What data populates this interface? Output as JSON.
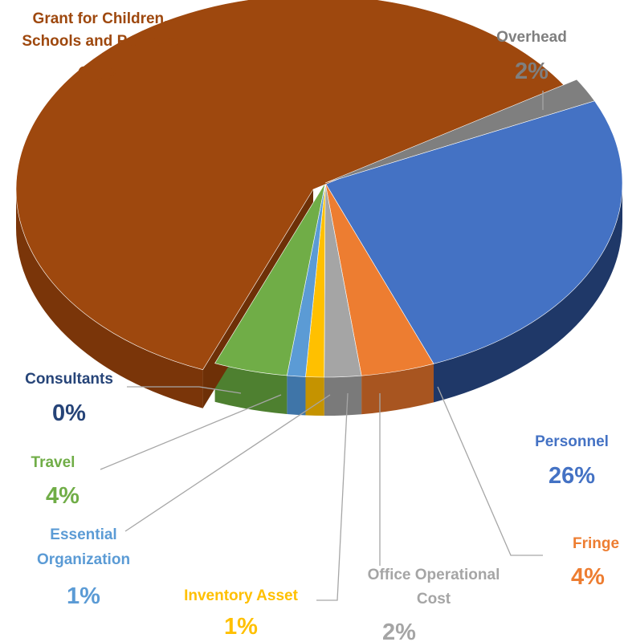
{
  "chart_data": {
    "type": "pie",
    "style": "3d-exploded",
    "title": "",
    "unit": "%",
    "slices": [
      {
        "key": "grant",
        "label_lines": [
          "Grant for Children,",
          "Schools and Partners"
        ],
        "value": 60,
        "value_label": "60%",
        "color": "#9E480E",
        "side_color": "#7A3509",
        "label_color": "#9E480E"
      },
      {
        "key": "overhead",
        "label_lines": [
          "Overhead"
        ],
        "value": 2,
        "value_label": "2%",
        "color": "#7F7F7F",
        "side_color": "#5E5E5E",
        "label_color": "#7F7F7F"
      },
      {
        "key": "personnel",
        "label_lines": [
          "Personnel"
        ],
        "value": 26,
        "value_label": "26%",
        "color": "#4472C4",
        "side_color": "#1F3868",
        "label_color": "#4472C4"
      },
      {
        "key": "fringe",
        "label_lines": [
          "Fringe"
        ],
        "value": 4,
        "value_label": "4%",
        "color": "#ED7D31",
        "side_color": "#A85520",
        "label_color": "#ED7D31"
      },
      {
        "key": "office",
        "label_lines": [
          "Office Operational",
          "Cost"
        ],
        "value": 2,
        "value_label": "2%",
        "color": "#A5A5A5",
        "side_color": "#7A7A7A",
        "label_color": "#A5A5A5"
      },
      {
        "key": "inventory",
        "label_lines": [
          "Inventory Asset"
        ],
        "value": 1,
        "value_label": "1%",
        "color": "#FFC000",
        "side_color": "#C59300",
        "label_color": "#FFC000"
      },
      {
        "key": "essential",
        "label_lines": [
          "Essential",
          "Organization"
        ],
        "value": 1,
        "value_label": "1%",
        "color": "#5B9BD5",
        "side_color": "#3F75A8",
        "label_color": "#5B9BD5"
      },
      {
        "key": "travel",
        "label_lines": [
          "Travel"
        ],
        "value": 4,
        "value_label": "4%",
        "color": "#70AD47",
        "side_color": "#4E8030",
        "label_color": "#70AD47"
      },
      {
        "key": "consultants",
        "label_lines": [
          "Consultants"
        ],
        "value": 0,
        "value_label": "0%",
        "color": "#264478",
        "side_color": "#1A3058",
        "label_color": "#264478"
      }
    ]
  }
}
